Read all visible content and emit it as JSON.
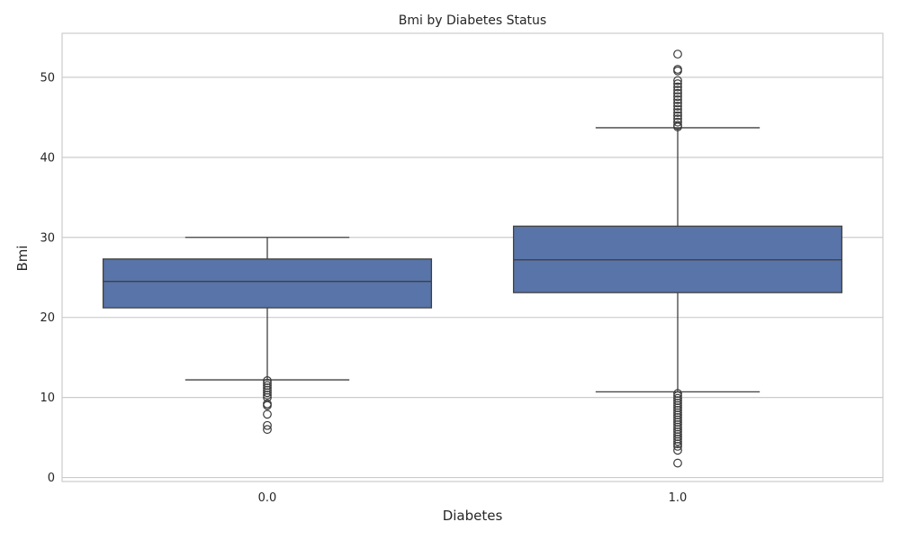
{
  "chart_data": {
    "type": "box",
    "title": "Bmi by Diabetes Status",
    "xlabel": "Diabetes",
    "ylabel": "Bmi",
    "ylim": [
      -0.5,
      55.5
    ],
    "yticks": [
      "0",
      "10",
      "20",
      "30",
      "40",
      "50"
    ],
    "categories": [
      "0.0",
      "1.0"
    ],
    "grid": true,
    "box_color": "#5874a8",
    "boxes": [
      {
        "category": "0.0",
        "whisker_low": 12.2,
        "q1": 21.2,
        "median": 24.5,
        "q3": 27.3,
        "whisker_high": 30.0,
        "outliers": [
          12.1,
          11.8,
          11.5,
          11.2,
          10.9,
          10.6,
          10.3,
          10.0,
          9.2,
          9.0,
          7.9,
          6.5,
          6.0
        ]
      },
      {
        "category": "1.0",
        "whisker_low": 10.7,
        "q1": 23.1,
        "median": 27.2,
        "q3": 31.4,
        "whisker_high": 43.7,
        "outliers": [
          52.9,
          51.0,
          50.8,
          49.6,
          49.2,
          48.8,
          48.4,
          48.0,
          47.6,
          47.2,
          46.8,
          46.4,
          46.0,
          45.6,
          45.2,
          44.8,
          44.4,
          44.0,
          43.8,
          10.5,
          10.2,
          9.9,
          9.6,
          9.3,
          9.0,
          8.7,
          8.4,
          8.1,
          7.8,
          7.5,
          7.2,
          6.9,
          6.6,
          6.3,
          6.0,
          5.7,
          5.4,
          5.1,
          4.8,
          4.5,
          4.2,
          3.9,
          3.4,
          1.8
        ]
      }
    ]
  }
}
